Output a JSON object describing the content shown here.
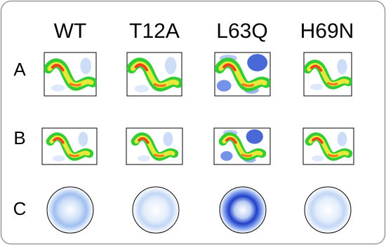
{
  "columns": [
    "WT",
    "T12A",
    "L63Q",
    "H69N"
  ],
  "rows": [
    "A",
    "B",
    "C"
  ]
}
